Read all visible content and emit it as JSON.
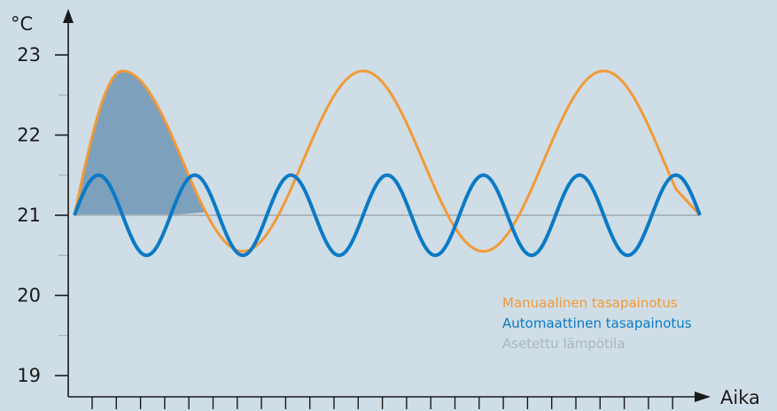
{
  "chart_data": {
    "type": "line",
    "ylabel": "°C",
    "xlabel": "Aika",
    "ylim": [
      19,
      23
    ],
    "yticks": [
      "19",
      "20",
      "21",
      "22",
      "23"
    ],
    "grid": false,
    "legend_position": "bottom-right",
    "series": [
      {
        "name": "Manuaalinen tasapainotus",
        "color": "#f29a38",
        "period": 5,
        "x": [
          0,
          0.5,
          1,
          1.5,
          2,
          2.5,
          3,
          3.5,
          4,
          4.5,
          5,
          5.5,
          6,
          6.5,
          7,
          7.5,
          8,
          8.5,
          9,
          9.5,
          10,
          10.5,
          11,
          11.5,
          12,
          12.5,
          13
        ],
        "values": [
          21.0,
          22.6,
          22.8,
          22.5,
          21.6,
          20.9,
          20.6,
          20.55,
          20.8,
          21.8,
          22.8,
          22.5,
          21.6,
          20.9,
          20.6,
          20.55,
          20.8,
          21.8,
          22.8,
          22.5,
          21.6,
          20.9,
          20.6,
          20.55,
          20.8,
          21.8,
          21.0
        ]
      },
      {
        "name": "Automaattinen tasapainotus",
        "color": "#0a7ac6",
        "x": [
          0,
          0.5,
          1,
          1.5,
          2,
          2.5,
          3,
          3.5,
          4,
          4.5,
          5,
          5.5,
          6,
          6.5,
          7,
          7.5,
          8,
          8.5,
          9,
          9.5,
          10,
          10.5,
          11,
          11.5,
          12,
          12.5,
          13
        ],
        "values": [
          21.0,
          21.5,
          21.0,
          20.5,
          21.0,
          21.5,
          21.0,
          20.5,
          21.0,
          21.5,
          21.0,
          20.5,
          21.0,
          21.5,
          21.0,
          20.5,
          21.0,
          21.5,
          21.0,
          20.5,
          21.0,
          21.5,
          21.0,
          20.5,
          21.0,
          21.5,
          21.0
        ]
      },
      {
        "name": "Asetettu lämpötila",
        "color": "#a9b6be",
        "x": [
          0,
          13
        ],
        "values": [
          21,
          21
        ]
      }
    ],
    "shaded_region": {
      "color": "#7da0bc",
      "note": "area between Manuaalinen tasapainotus and Asetettu lämpötila during first peak"
    }
  }
}
